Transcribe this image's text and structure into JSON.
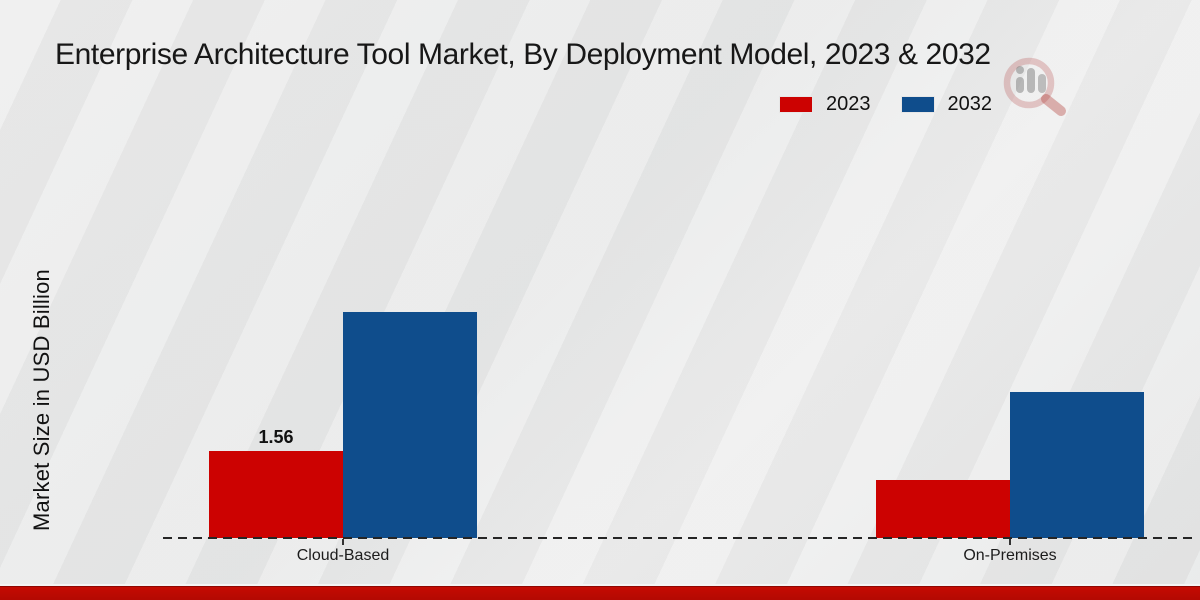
{
  "title": "Enterprise Architecture Tool Market, By Deployment Model, 2023 & 2032",
  "y_axis_label": "Market Size in USD Billion",
  "legend": {
    "position": "upper-right",
    "items": [
      {
        "label": "2023",
        "color": "#cc0201"
      },
      {
        "label": "2032",
        "color": "#0f4d8c"
      }
    ]
  },
  "chart_data": {
    "type": "bar",
    "title": "Enterprise Architecture Tool Market, By Deployment Model, 2023 & 2032",
    "categories": [
      "Cloud-Based",
      "On-Premises"
    ],
    "series": [
      {
        "name": "2023",
        "color": "#cc0201",
        "values": [
          1.56,
          1.04
        ]
      },
      {
        "name": "2032",
        "color": "#0f4d8c",
        "values": [
          4.05,
          2.62
        ]
      }
    ],
    "value_labels": [
      {
        "series": "2023",
        "category": "Cloud-Based",
        "text": "1.56"
      }
    ],
    "xlabel": "",
    "ylabel": "Market Size in USD Billion",
    "ylim": [
      0,
      7.1
    ],
    "grid": false,
    "legend_position": "upper right",
    "baseline_style": "dashed",
    "baseline_color": "#252525"
  },
  "watermark": {
    "icon": "magnifier-bar-chart-logo"
  },
  "footer": {
    "band_color": "#c50b02"
  }
}
